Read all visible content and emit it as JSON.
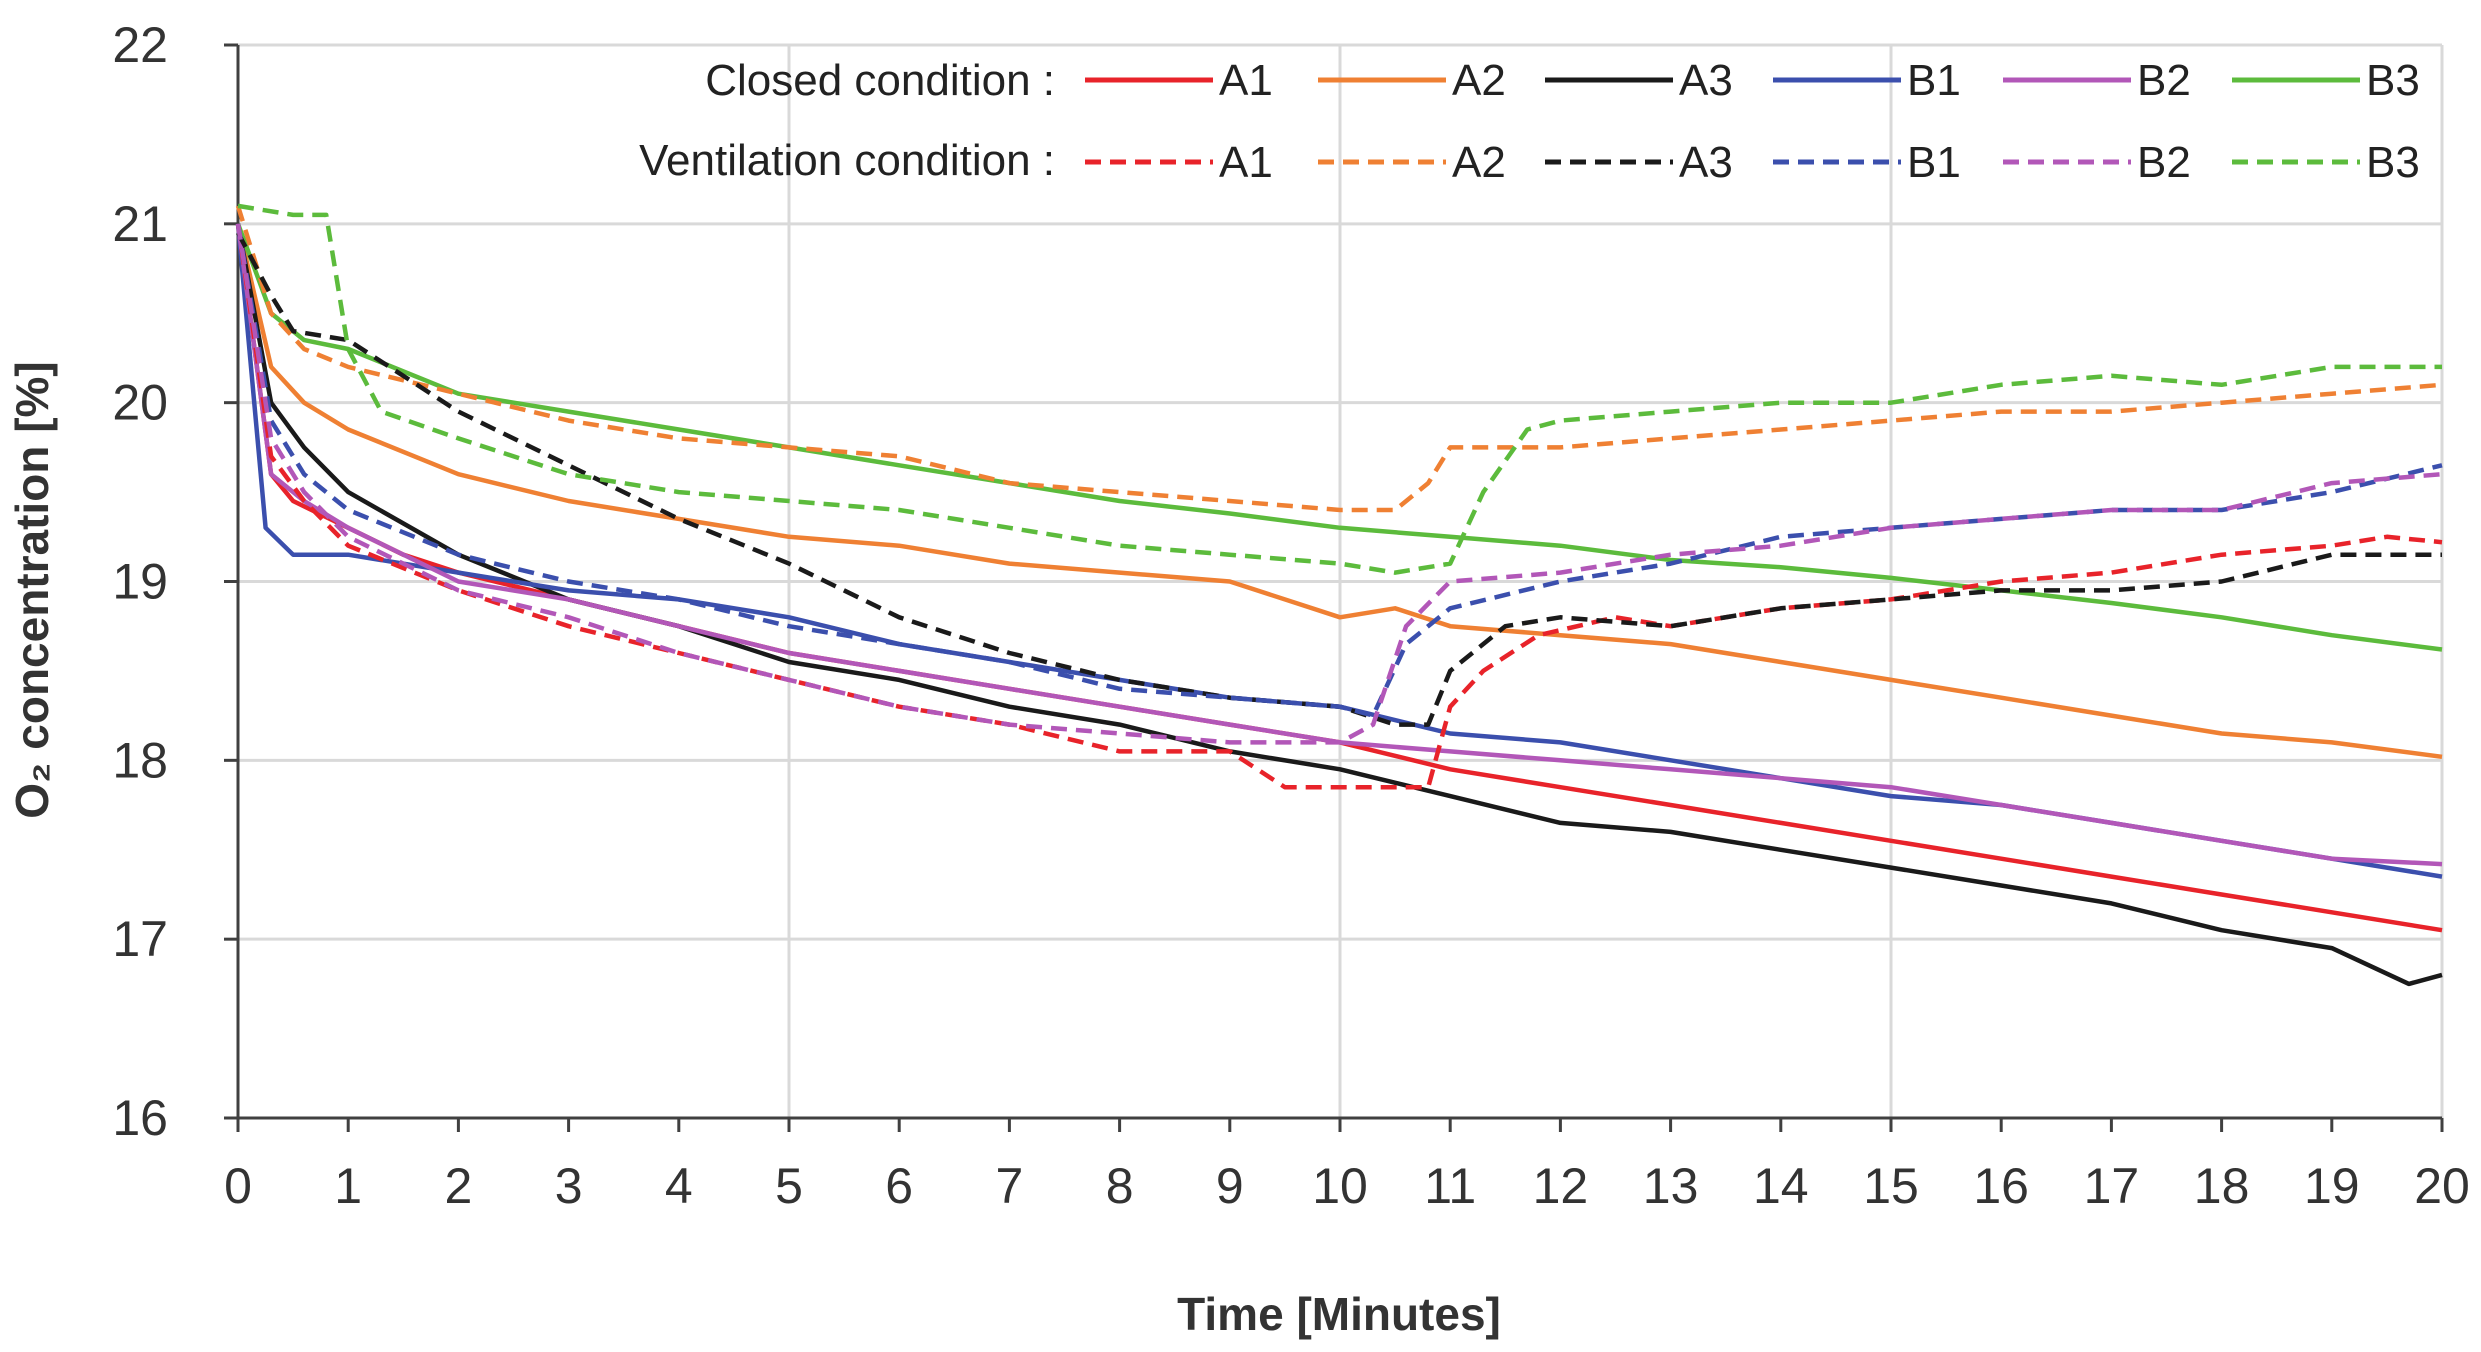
{
  "chart_data": {
    "type": "line",
    "title": "",
    "xlabel": "Time [Minutes]",
    "ylabel": "O₂ concentration [%]",
    "xlim": [
      0,
      20
    ],
    "ylim": [
      16,
      22
    ],
    "x_ticks": [
      0,
      1,
      2,
      3,
      4,
      5,
      6,
      7,
      8,
      9,
      10,
      11,
      12,
      13,
      14,
      15,
      16,
      17,
      18,
      19,
      20
    ],
    "y_ticks": [
      16,
      17,
      18,
      19,
      20,
      21,
      22
    ],
    "grid": true,
    "legend": {
      "placement": "top-right",
      "closed_label": "Closed condition :",
      "ventilation_label": "Ventilation condition :"
    },
    "series": [
      {
        "name": "A1",
        "condition": "closed",
        "style": "solid",
        "color": "#e8232a",
        "x": [
          0,
          0.3,
          0.5,
          1,
          1.5,
          2,
          3,
          4,
          5,
          6,
          7,
          8,
          9,
          10,
          11,
          12,
          13,
          14,
          15,
          16,
          17,
          18,
          19,
          20
        ],
        "y": [
          21.0,
          19.6,
          19.45,
          19.3,
          19.15,
          19.05,
          18.9,
          18.75,
          18.6,
          18.5,
          18.4,
          18.3,
          18.2,
          18.1,
          17.95,
          17.85,
          17.75,
          17.65,
          17.55,
          17.45,
          17.35,
          17.25,
          17.15,
          17.05
        ]
      },
      {
        "name": "A2",
        "condition": "closed",
        "style": "solid",
        "color": "#ef8033",
        "x": [
          0,
          0.3,
          0.6,
          1,
          2,
          3,
          4,
          5,
          6,
          7,
          8,
          9,
          10,
          10.5,
          11,
          12,
          13,
          14,
          15,
          16,
          17,
          18,
          19,
          20
        ],
        "y": [
          21.0,
          20.2,
          20.0,
          19.85,
          19.6,
          19.45,
          19.35,
          19.25,
          19.2,
          19.1,
          19.05,
          19.0,
          18.8,
          18.85,
          18.75,
          18.7,
          18.65,
          18.55,
          18.45,
          18.35,
          18.25,
          18.15,
          18.1,
          18.02
        ]
      },
      {
        "name": "A3",
        "condition": "closed",
        "style": "solid",
        "color": "#1a1a1a",
        "x": [
          0,
          0.3,
          0.6,
          1,
          2,
          3,
          4,
          5,
          6,
          7,
          8,
          9,
          10,
          11,
          12,
          13,
          14,
          15,
          16,
          17,
          18,
          19,
          19.7,
          20
        ],
        "y": [
          21.0,
          20.0,
          19.75,
          19.5,
          19.15,
          18.9,
          18.75,
          18.55,
          18.45,
          18.3,
          18.2,
          18.05,
          17.95,
          17.8,
          17.65,
          17.6,
          17.5,
          17.4,
          17.3,
          17.2,
          17.05,
          16.95,
          16.75,
          16.8
        ]
      },
      {
        "name": "B1",
        "condition": "closed",
        "style": "solid",
        "color": "#3b4fad",
        "x": [
          0,
          0.25,
          0.5,
          1,
          2,
          3,
          4,
          5,
          6,
          7,
          8,
          9,
          10,
          11,
          12,
          13,
          14,
          15,
          16,
          17,
          18,
          19,
          20
        ],
        "y": [
          21.0,
          19.3,
          19.15,
          19.15,
          19.05,
          18.95,
          18.9,
          18.8,
          18.65,
          18.55,
          18.45,
          18.35,
          18.3,
          18.15,
          18.1,
          18.0,
          17.9,
          17.8,
          17.75,
          17.65,
          17.55,
          17.45,
          17.35
        ]
      },
      {
        "name": "B2",
        "condition": "closed",
        "style": "solid",
        "color": "#b257b8",
        "x": [
          0,
          0.3,
          0.6,
          1,
          2,
          3,
          4,
          5,
          6,
          7,
          8,
          9,
          10,
          11,
          12,
          13,
          14,
          15,
          16,
          17,
          18,
          19,
          20
        ],
        "y": [
          21.0,
          19.6,
          19.45,
          19.3,
          19.0,
          18.9,
          18.75,
          18.6,
          18.5,
          18.4,
          18.3,
          18.2,
          18.1,
          18.05,
          18.0,
          17.95,
          17.9,
          17.85,
          17.75,
          17.65,
          17.55,
          17.45,
          17.42
        ]
      },
      {
        "name": "B3",
        "condition": "closed",
        "style": "solid",
        "color": "#5cbb3c",
        "x": [
          0,
          0.3,
          0.6,
          1,
          2,
          3,
          4,
          5,
          6,
          7,
          8,
          9,
          10,
          11,
          12,
          13,
          14,
          15,
          16,
          17,
          18,
          19,
          20
        ],
        "y": [
          21.0,
          20.5,
          20.35,
          20.3,
          20.05,
          19.95,
          19.85,
          19.75,
          19.65,
          19.55,
          19.45,
          19.38,
          19.3,
          19.25,
          19.2,
          19.12,
          19.08,
          19.02,
          18.95,
          18.88,
          18.8,
          18.7,
          18.62
        ]
      },
      {
        "name": "A1",
        "condition": "ventilation",
        "style": "dashed",
        "color": "#e8232a",
        "x": [
          0,
          0.3,
          0.6,
          1,
          2,
          3,
          4,
          5,
          6,
          7,
          8,
          9,
          9.5,
          10,
          10.5,
          10.8,
          11,
          11.3,
          11.8,
          12.5,
          13,
          14,
          15,
          16,
          17,
          18,
          19,
          19.5,
          20
        ],
        "y": [
          21.0,
          19.7,
          19.45,
          19.2,
          18.95,
          18.75,
          18.6,
          18.45,
          18.3,
          18.2,
          18.05,
          18.05,
          17.85,
          17.85,
          17.85,
          17.85,
          18.3,
          18.5,
          18.7,
          18.8,
          18.75,
          18.85,
          18.9,
          19.0,
          19.05,
          19.15,
          19.2,
          19.25,
          19.22
        ]
      },
      {
        "name": "A2",
        "condition": "ventilation",
        "style": "dashed",
        "color": "#ef8033",
        "x": [
          0,
          0.3,
          0.6,
          1,
          2,
          3,
          4,
          5,
          6,
          7,
          8,
          9,
          10,
          10.5,
          10.8,
          11,
          12,
          13,
          14,
          15,
          16,
          17,
          18,
          19,
          20
        ],
        "y": [
          21.1,
          20.5,
          20.3,
          20.2,
          20.05,
          19.9,
          19.8,
          19.75,
          19.7,
          19.55,
          19.5,
          19.45,
          19.4,
          19.4,
          19.55,
          19.75,
          19.75,
          19.8,
          19.85,
          19.9,
          19.95,
          19.95,
          20.0,
          20.05,
          20.1
        ]
      },
      {
        "name": "A3",
        "condition": "ventilation",
        "style": "dashed",
        "color": "#1a1a1a",
        "x": [
          0,
          0.3,
          0.5,
          1,
          2,
          3,
          4,
          5,
          6,
          7,
          8,
          9,
          10,
          10.5,
          10.8,
          11,
          11.5,
          12,
          13,
          14,
          15,
          16,
          17,
          18,
          19,
          20
        ],
        "y": [
          20.95,
          20.6,
          20.4,
          20.35,
          19.95,
          19.65,
          19.35,
          19.1,
          18.8,
          18.6,
          18.45,
          18.35,
          18.3,
          18.2,
          18.2,
          18.5,
          18.75,
          18.8,
          18.75,
          18.85,
          18.9,
          18.95,
          18.95,
          19.0,
          19.15,
          19.15
        ]
      },
      {
        "name": "B1",
        "condition": "ventilation",
        "style": "dashed",
        "color": "#3b4fad",
        "x": [
          0,
          0.3,
          0.6,
          1,
          2,
          3,
          4,
          5,
          6,
          7,
          8,
          9,
          10,
          10.3,
          10.6,
          11,
          12,
          13,
          14,
          15,
          16,
          17,
          18,
          19,
          20
        ],
        "y": [
          21.0,
          19.9,
          19.6,
          19.4,
          19.15,
          19.0,
          18.9,
          18.75,
          18.65,
          18.55,
          18.4,
          18.35,
          18.3,
          18.25,
          18.65,
          18.85,
          19.0,
          19.1,
          19.25,
          19.3,
          19.35,
          19.4,
          19.4,
          19.5,
          19.65
        ]
      },
      {
        "name": "B2",
        "condition": "ventilation",
        "style": "dashed",
        "color": "#b257b8",
        "x": [
          0,
          0.3,
          0.6,
          1,
          2,
          3,
          4,
          5,
          6,
          7,
          8,
          9,
          10,
          10.3,
          10.6,
          11,
          12,
          13,
          14,
          15,
          16,
          17,
          18,
          19,
          20
        ],
        "y": [
          21.0,
          19.8,
          19.5,
          19.25,
          18.95,
          18.8,
          18.6,
          18.45,
          18.3,
          18.2,
          18.15,
          18.1,
          18.1,
          18.2,
          18.75,
          19.0,
          19.05,
          19.15,
          19.2,
          19.3,
          19.35,
          19.4,
          19.4,
          19.55,
          19.6
        ]
      },
      {
        "name": "B3",
        "condition": "ventilation",
        "style": "dashed",
        "color": "#5cbb3c",
        "x": [
          0,
          0.5,
          0.8,
          1.0,
          1.3,
          2,
          3,
          4,
          5,
          6,
          7,
          8,
          9,
          10,
          10.5,
          11,
          11.3,
          11.7,
          12,
          13,
          14,
          15,
          16,
          17,
          18,
          19,
          20
        ],
        "y": [
          21.1,
          21.05,
          21.05,
          20.3,
          19.95,
          19.8,
          19.6,
          19.5,
          19.45,
          19.4,
          19.3,
          19.2,
          19.15,
          19.1,
          19.05,
          19.1,
          19.5,
          19.85,
          19.9,
          19.95,
          20.0,
          20.0,
          20.1,
          20.15,
          20.1,
          20.2,
          20.2
        ]
      }
    ]
  }
}
